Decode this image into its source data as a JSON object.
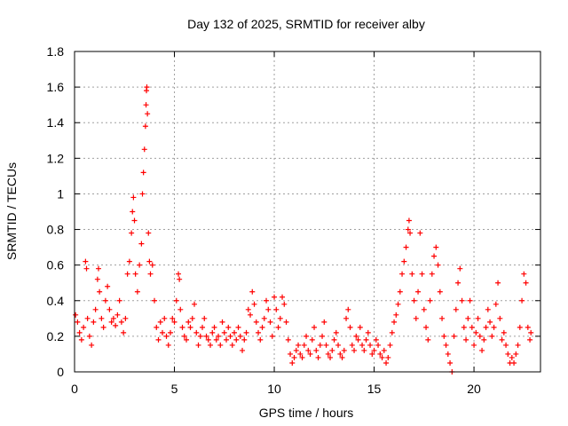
{
  "chart_data": {
    "type": "scatter",
    "title": "Day 132 of 2025, SRMTID for receiver alby",
    "xlabel": "GPS time / hours",
    "ylabel": "SRMTID / TECUs",
    "xlim": [
      0,
      23.33
    ],
    "ylim": [
      0,
      1.8
    ],
    "x_ticks": [
      0,
      5,
      10,
      15,
      20
    ],
    "x_tick_labels": [
      "0",
      "5",
      "10",
      "15",
      "20"
    ],
    "y_ticks": [
      0,
      0.2,
      0.4,
      0.6,
      0.8,
      1.0,
      1.2,
      1.4,
      1.6,
      1.8
    ],
    "y_tick_labels": [
      "0",
      "0.2",
      "0.4",
      "0.6",
      "0.8",
      "1",
      "1.2",
      "1.4",
      "1.6",
      "1.8"
    ],
    "grid": true,
    "marker": "+",
    "series": [
      {
        "name": "SRMTID",
        "color": "#ff0000",
        "points": [
          [
            0.05,
            0.32
          ],
          [
            0.15,
            0.28
          ],
          [
            0.25,
            0.22
          ],
          [
            0.35,
            0.18
          ],
          [
            0.45,
            0.25
          ],
          [
            0.55,
            0.62
          ],
          [
            0.6,
            0.58
          ],
          [
            0.65,
            0.3
          ],
          [
            0.75,
            0.2
          ],
          [
            0.85,
            0.15
          ],
          [
            0.95,
            0.28
          ],
          [
            1.05,
            0.35
          ],
          [
            1.15,
            0.52
          ],
          [
            1.2,
            0.58
          ],
          [
            1.25,
            0.45
          ],
          [
            1.35,
            0.3
          ],
          [
            1.45,
            0.25
          ],
          [
            1.55,
            0.4
          ],
          [
            1.65,
            0.48
          ],
          [
            1.75,
            0.35
          ],
          [
            1.85,
            0.28
          ],
          [
            1.95,
            0.3
          ],
          [
            2.05,
            0.26
          ],
          [
            2.15,
            0.32
          ],
          [
            2.25,
            0.4
          ],
          [
            2.35,
            0.28
          ],
          [
            2.45,
            0.22
          ],
          [
            2.55,
            0.3
          ],
          [
            2.65,
            0.55
          ],
          [
            2.75,
            0.62
          ],
          [
            2.85,
            0.78
          ],
          [
            2.9,
            0.9
          ],
          [
            2.95,
            0.98
          ],
          [
            3.0,
            0.85
          ],
          [
            3.05,
            0.55
          ],
          [
            3.15,
            0.45
          ],
          [
            3.25,
            0.6
          ],
          [
            3.35,
            0.72
          ],
          [
            3.4,
            1.0
          ],
          [
            3.45,
            1.12
          ],
          [
            3.5,
            1.25
          ],
          [
            3.55,
            1.38
          ],
          [
            3.58,
            1.5
          ],
          [
            3.6,
            1.58
          ],
          [
            3.62,
            1.6
          ],
          [
            3.65,
            1.45
          ],
          [
            3.7,
            0.78
          ],
          [
            3.75,
            0.62
          ],
          [
            3.8,
            0.55
          ],
          [
            3.9,
            0.6
          ],
          [
            4.0,
            0.4
          ],
          [
            4.1,
            0.25
          ],
          [
            4.2,
            0.18
          ],
          [
            4.3,
            0.28
          ],
          [
            4.4,
            0.22
          ],
          [
            4.5,
            0.3
          ],
          [
            4.6,
            0.2
          ],
          [
            4.7,
            0.15
          ],
          [
            4.8,
            0.22
          ],
          [
            4.9,
            0.3
          ],
          [
            5.0,
            0.28
          ],
          [
            5.1,
            0.4
          ],
          [
            5.2,
            0.55
          ],
          [
            5.25,
            0.52
          ],
          [
            5.3,
            0.35
          ],
          [
            5.4,
            0.25
          ],
          [
            5.5,
            0.2
          ],
          [
            5.6,
            0.18
          ],
          [
            5.7,
            0.28
          ],
          [
            5.8,
            0.25
          ],
          [
            5.9,
            0.3
          ],
          [
            6.0,
            0.38
          ],
          [
            6.1,
            0.22
          ],
          [
            6.2,
            0.15
          ],
          [
            6.3,
            0.2
          ],
          [
            6.4,
            0.25
          ],
          [
            6.5,
            0.3
          ],
          [
            6.6,
            0.2
          ],
          [
            6.7,
            0.18
          ],
          [
            6.8,
            0.15
          ],
          [
            6.9,
            0.22
          ],
          [
            7.0,
            0.25
          ],
          [
            7.1,
            0.18
          ],
          [
            7.2,
            0.2
          ],
          [
            7.3,
            0.15
          ],
          [
            7.4,
            0.28
          ],
          [
            7.5,
            0.22
          ],
          [
            7.6,
            0.18
          ],
          [
            7.7,
            0.25
          ],
          [
            7.8,
            0.2
          ],
          [
            7.9,
            0.15
          ],
          [
            8.0,
            0.22
          ],
          [
            8.1,
            0.18
          ],
          [
            8.2,
            0.25
          ],
          [
            8.3,
            0.2
          ],
          [
            8.4,
            0.12
          ],
          [
            8.5,
            0.18
          ],
          [
            8.6,
            0.22
          ],
          [
            8.7,
            0.35
          ],
          [
            8.8,
            0.32
          ],
          [
            8.9,
            0.45
          ],
          [
            9.0,
            0.38
          ],
          [
            9.1,
            0.28
          ],
          [
            9.2,
            0.22
          ],
          [
            9.3,
            0.18
          ],
          [
            9.4,
            0.25
          ],
          [
            9.5,
            0.3
          ],
          [
            9.6,
            0.4
          ],
          [
            9.7,
            0.35
          ],
          [
            9.8,
            0.28
          ],
          [
            9.9,
            0.2
          ],
          [
            10.0,
            0.42
          ],
          [
            10.1,
            0.35
          ],
          [
            10.2,
            0.25
          ],
          [
            10.3,
            0.3
          ],
          [
            10.4,
            0.42
          ],
          [
            10.5,
            0.38
          ],
          [
            10.6,
            0.28
          ],
          [
            10.7,
            0.18
          ],
          [
            10.8,
            0.1
          ],
          [
            10.9,
            0.05
          ],
          [
            11.0,
            0.08
          ],
          [
            11.1,
            0.12
          ],
          [
            11.2,
            0.15
          ],
          [
            11.3,
            0.1
          ],
          [
            11.4,
            0.08
          ],
          [
            11.5,
            0.15
          ],
          [
            11.6,
            0.2
          ],
          [
            11.7,
            0.12
          ],
          [
            11.8,
            0.1
          ],
          [
            11.9,
            0.18
          ],
          [
            12.0,
            0.25
          ],
          [
            12.1,
            0.12
          ],
          [
            12.2,
            0.08
          ],
          [
            12.3,
            0.15
          ],
          [
            12.4,
            0.2
          ],
          [
            12.5,
            0.28
          ],
          [
            12.6,
            0.15
          ],
          [
            12.7,
            0.1
          ],
          [
            12.8,
            0.08
          ],
          [
            12.9,
            0.12
          ],
          [
            13.0,
            0.18
          ],
          [
            13.1,
            0.22
          ],
          [
            13.2,
            0.15
          ],
          [
            13.3,
            0.1
          ],
          [
            13.4,
            0.08
          ],
          [
            13.5,
            0.12
          ],
          [
            13.6,
            0.3
          ],
          [
            13.7,
            0.35
          ],
          [
            13.8,
            0.25
          ],
          [
            13.9,
            0.15
          ],
          [
            14.0,
            0.12
          ],
          [
            14.1,
            0.2
          ],
          [
            14.2,
            0.18
          ],
          [
            14.3,
            0.25
          ],
          [
            14.4,
            0.15
          ],
          [
            14.5,
            0.12
          ],
          [
            14.6,
            0.18
          ],
          [
            14.7,
            0.22
          ],
          [
            14.8,
            0.15
          ],
          [
            14.9,
            0.1
          ],
          [
            15.0,
            0.12
          ],
          [
            15.1,
            0.18
          ],
          [
            15.2,
            0.15
          ],
          [
            15.3,
            0.1
          ],
          [
            15.4,
            0.08
          ],
          [
            15.5,
            0.12
          ],
          [
            15.6,
            0.05
          ],
          [
            15.7,
            0.08
          ],
          [
            15.8,
            0.15
          ],
          [
            15.9,
            0.22
          ],
          [
            16.0,
            0.28
          ],
          [
            16.1,
            0.32
          ],
          [
            16.2,
            0.38
          ],
          [
            16.3,
            0.45
          ],
          [
            16.4,
            0.55
          ],
          [
            16.5,
            0.62
          ],
          [
            16.6,
            0.7
          ],
          [
            16.7,
            0.8
          ],
          [
            16.75,
            0.85
          ],
          [
            16.8,
            0.78
          ],
          [
            16.9,
            0.55
          ],
          [
            17.0,
            0.4
          ],
          [
            17.1,
            0.3
          ],
          [
            17.2,
            0.45
          ],
          [
            17.3,
            0.78
          ],
          [
            17.4,
            0.55
          ],
          [
            17.5,
            0.35
          ],
          [
            17.6,
            0.25
          ],
          [
            17.7,
            0.18
          ],
          [
            17.8,
            0.4
          ],
          [
            17.9,
            0.55
          ],
          [
            18.0,
            0.65
          ],
          [
            18.1,
            0.7
          ],
          [
            18.2,
            0.6
          ],
          [
            18.3,
            0.45
          ],
          [
            18.4,
            0.3
          ],
          [
            18.5,
            0.2
          ],
          [
            18.6,
            0.15
          ],
          [
            18.7,
            0.1
          ],
          [
            18.8,
            0.05
          ],
          [
            18.9,
            0.0
          ],
          [
            19.0,
            0.2
          ],
          [
            19.1,
            0.35
          ],
          [
            19.2,
            0.5
          ],
          [
            19.3,
            0.58
          ],
          [
            19.4,
            0.4
          ],
          [
            19.5,
            0.25
          ],
          [
            19.6,
            0.18
          ],
          [
            19.7,
            0.3
          ],
          [
            19.8,
            0.4
          ],
          [
            19.9,
            0.25
          ],
          [
            20.0,
            0.15
          ],
          [
            20.1,
            0.22
          ],
          [
            20.2,
            0.3
          ],
          [
            20.3,
            0.2
          ],
          [
            20.4,
            0.12
          ],
          [
            20.5,
            0.18
          ],
          [
            20.6,
            0.25
          ],
          [
            20.7,
            0.35
          ],
          [
            20.8,
            0.28
          ],
          [
            20.9,
            0.2
          ],
          [
            21.0,
            0.25
          ],
          [
            21.1,
            0.38
          ],
          [
            21.2,
            0.5
          ],
          [
            21.3,
            0.3
          ],
          [
            21.4,
            0.18
          ],
          [
            21.5,
            0.22
          ],
          [
            21.6,
            0.15
          ],
          [
            21.7,
            0.1
          ],
          [
            21.8,
            0.05
          ],
          [
            21.9,
            0.08
          ],
          [
            22.0,
            0.05
          ],
          [
            22.1,
            0.1
          ],
          [
            22.2,
            0.15
          ],
          [
            22.3,
            0.25
          ],
          [
            22.4,
            0.4
          ],
          [
            22.5,
            0.55
          ],
          [
            22.6,
            0.5
          ],
          [
            22.7,
            0.25
          ],
          [
            22.8,
            0.18
          ],
          [
            22.85,
            0.22
          ]
        ]
      }
    ]
  }
}
